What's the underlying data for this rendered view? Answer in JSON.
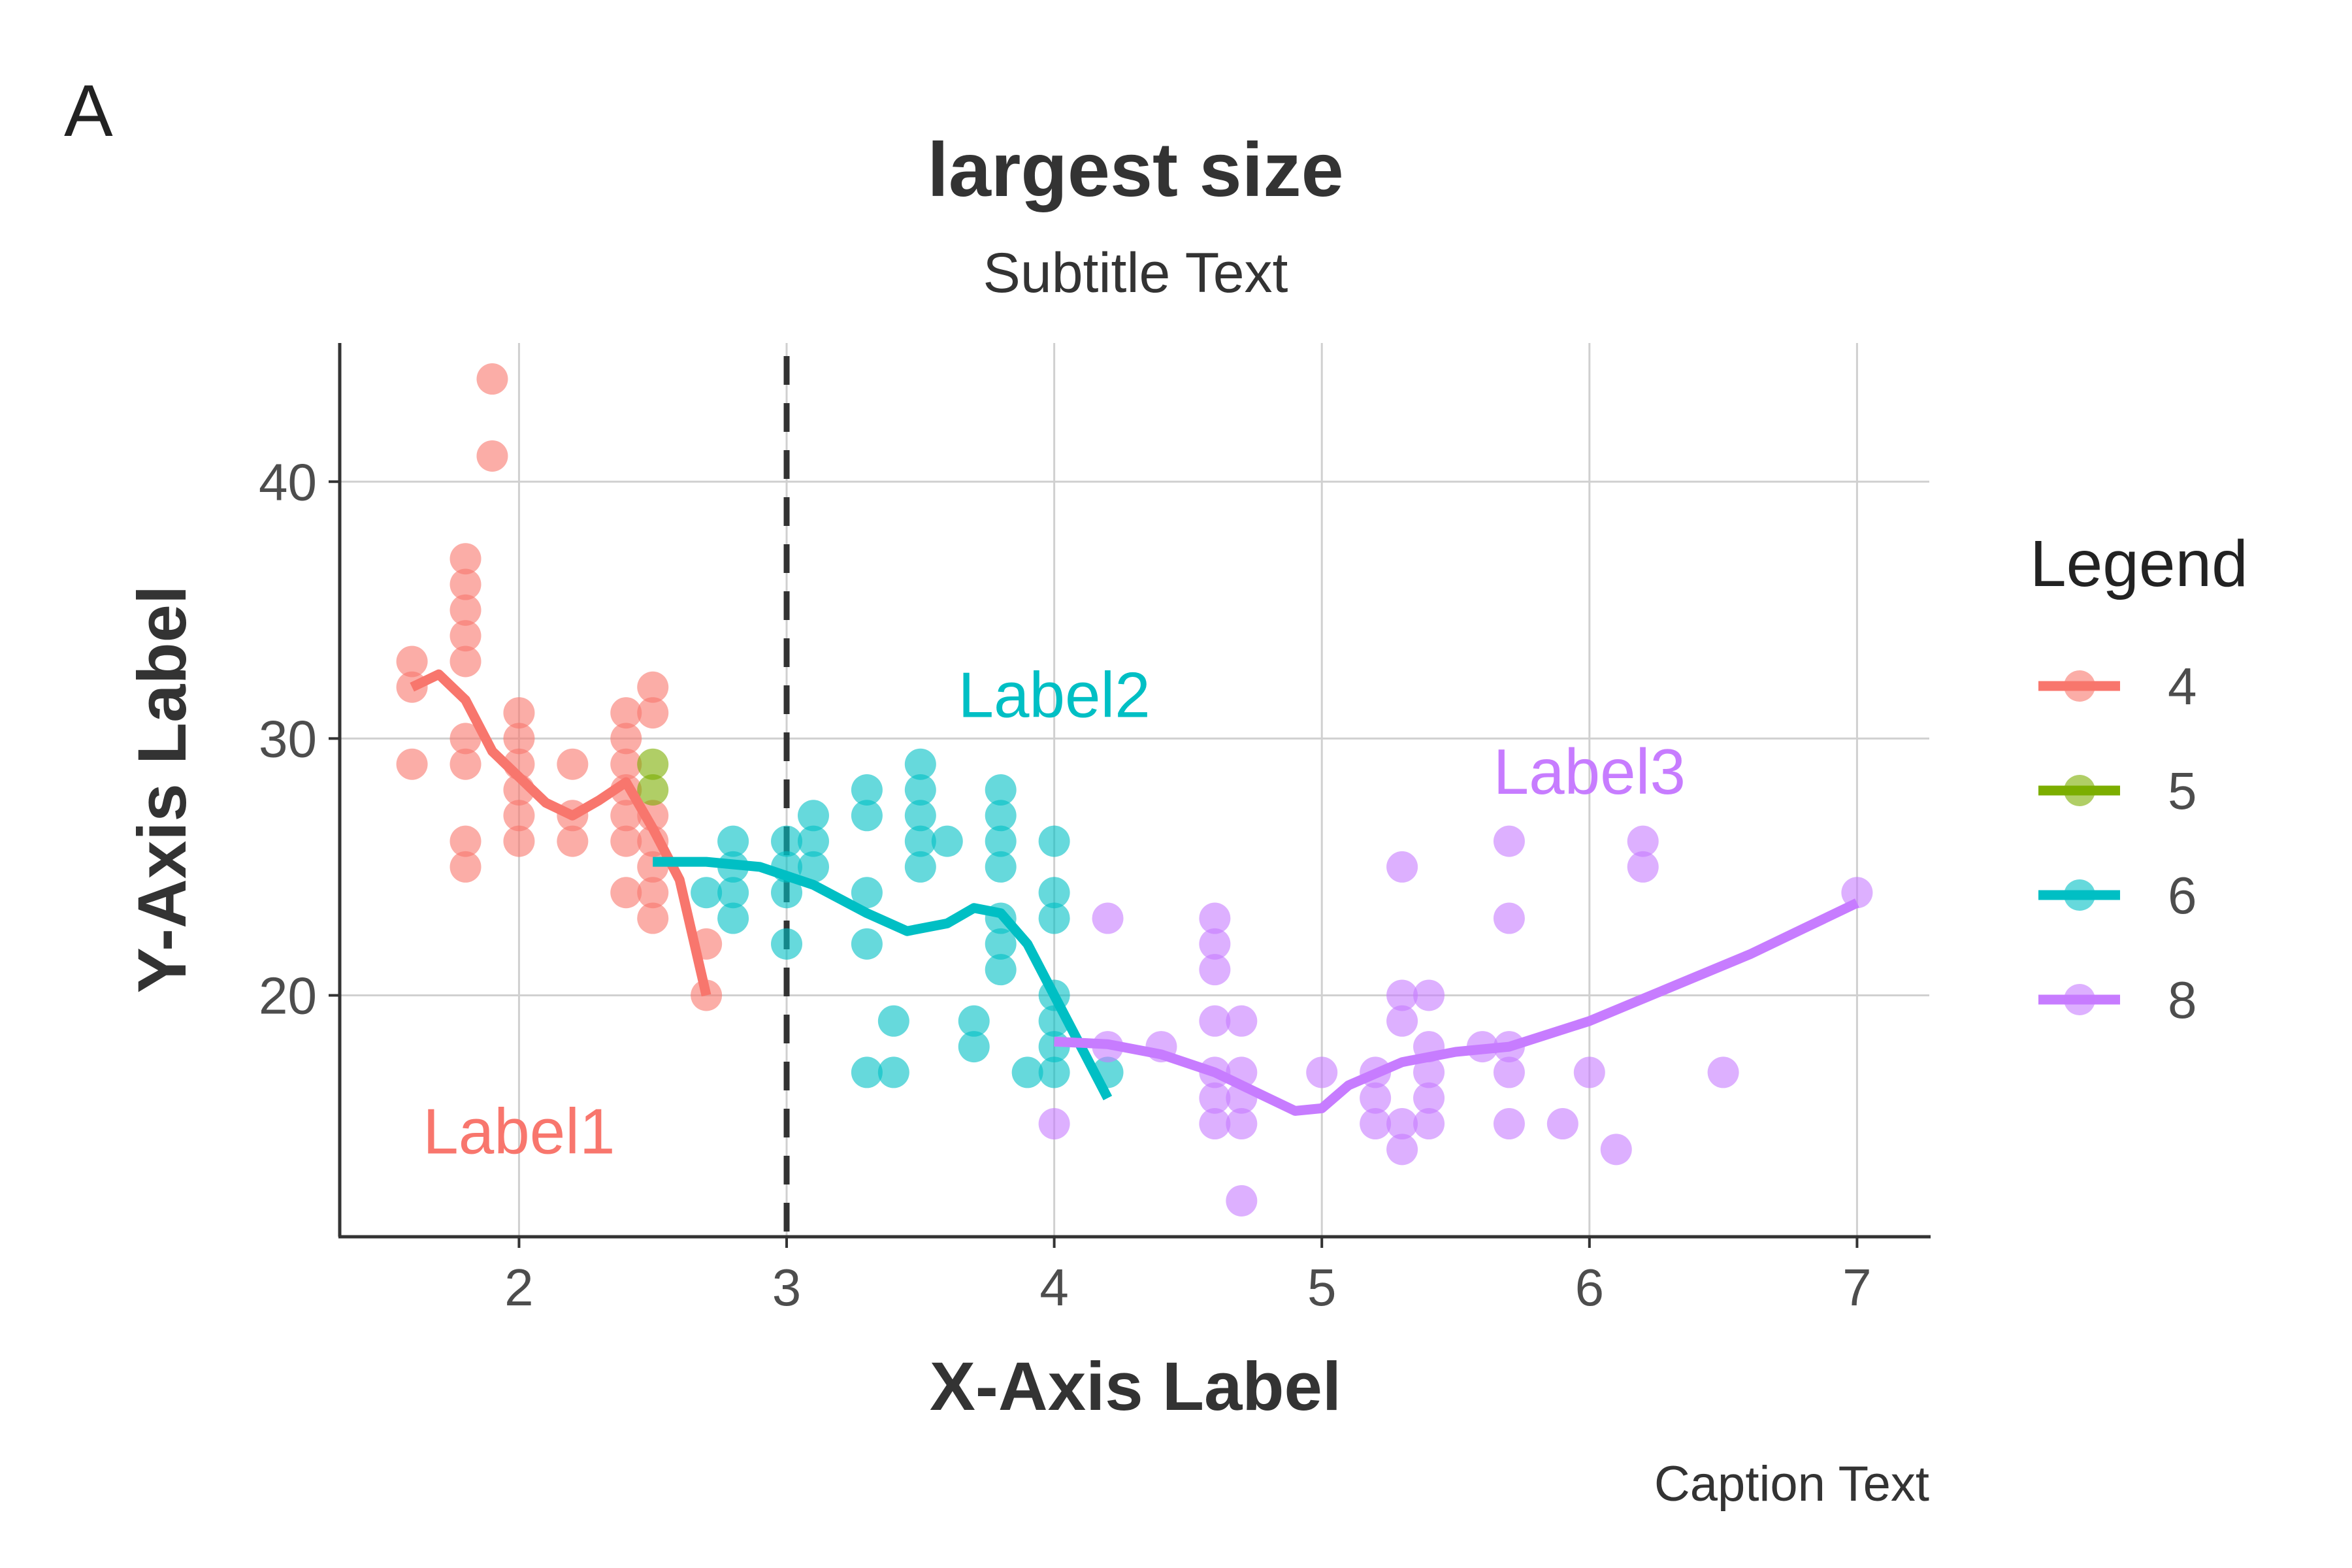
{
  "panel_tag": "A",
  "chart_data": {
    "type": "scatter",
    "title": "largest size",
    "subtitle": "Subtitle Text",
    "xlabel": "X-Axis Label",
    "ylabel": "Y-Axis Label",
    "caption": "Caption Text",
    "xlim": [
      1.33,
      7.27
    ],
    "ylim": [
      10.6,
      45.4
    ],
    "xticks": [
      2,
      3,
      4,
      5,
      6,
      7
    ],
    "xtick_labels": [
      "2",
      "3",
      "4",
      "5",
      "6",
      "7"
    ],
    "yticks": [
      20,
      30,
      40
    ],
    "ytick_labels": [
      "20",
      "30",
      "40"
    ],
    "grid": true,
    "vline": {
      "x": 3,
      "style": "dashed",
      "color": "#333333"
    },
    "legend": {
      "title": "Legend",
      "position": "right"
    },
    "series": [
      {
        "name": "4",
        "color": "#F8766D",
        "points": [
          [
            1.6,
            33
          ],
          [
            1.6,
            32
          ],
          [
            1.6,
            29
          ],
          [
            1.8,
            37
          ],
          [
            1.8,
            36
          ],
          [
            1.8,
            35
          ],
          [
            1.8,
            34
          ],
          [
            1.8,
            33
          ],
          [
            1.8,
            30
          ],
          [
            1.8,
            29
          ],
          [
            1.8,
            26
          ],
          [
            1.8,
            25
          ],
          [
            1.9,
            44
          ],
          [
            1.9,
            41
          ],
          [
            2.0,
            31
          ],
          [
            2.0,
            30
          ],
          [
            2.0,
            29
          ],
          [
            2.0,
            28
          ],
          [
            2.0,
            27
          ],
          [
            2.0,
            26
          ],
          [
            2.2,
            29
          ],
          [
            2.2,
            27
          ],
          [
            2.2,
            26
          ],
          [
            2.4,
            31
          ],
          [
            2.4,
            30
          ],
          [
            2.4,
            29
          ],
          [
            2.4,
            28
          ],
          [
            2.4,
            27
          ],
          [
            2.4,
            26
          ],
          [
            2.4,
            24
          ],
          [
            2.5,
            32
          ],
          [
            2.5,
            31
          ],
          [
            2.5,
            27
          ],
          [
            2.5,
            26
          ],
          [
            2.5,
            25
          ],
          [
            2.5,
            24
          ],
          [
            2.5,
            23
          ],
          [
            2.7,
            22
          ],
          [
            2.7,
            20
          ]
        ],
        "smooth": [
          [
            1.6,
            32
          ],
          [
            1.7,
            32.5
          ],
          [
            1.8,
            31.5
          ],
          [
            1.9,
            29.5
          ],
          [
            2.0,
            28.5
          ],
          [
            2.1,
            27.5
          ],
          [
            2.2,
            27
          ],
          [
            2.3,
            27.6
          ],
          [
            2.4,
            28.3
          ],
          [
            2.5,
            26.5
          ],
          [
            2.6,
            24.5
          ],
          [
            2.7,
            20
          ]
        ]
      },
      {
        "name": "5",
        "color": "#7CAE00",
        "points": [
          [
            2.5,
            29
          ],
          [
            2.5,
            28
          ]
        ],
        "smooth": []
      },
      {
        "name": "6",
        "color": "#00BFC4",
        "points": [
          [
            2.7,
            24
          ],
          [
            2.8,
            26
          ],
          [
            2.8,
            25
          ],
          [
            2.8,
            24
          ],
          [
            2.8,
            23
          ],
          [
            3.0,
            26
          ],
          [
            3.0,
            25
          ],
          [
            3.0,
            24
          ],
          [
            3.0,
            22
          ],
          [
            3.1,
            27
          ],
          [
            3.1,
            26
          ],
          [
            3.1,
            25
          ],
          [
            3.3,
            28
          ],
          [
            3.3,
            27
          ],
          [
            3.3,
            24
          ],
          [
            3.3,
            22
          ],
          [
            3.3,
            17
          ],
          [
            3.4,
            19
          ],
          [
            3.4,
            17
          ],
          [
            3.5,
            29
          ],
          [
            3.5,
            28
          ],
          [
            3.5,
            27
          ],
          [
            3.5,
            26
          ],
          [
            3.5,
            25
          ],
          [
            3.6,
            26
          ],
          [
            3.7,
            19
          ],
          [
            3.7,
            18
          ],
          [
            3.8,
            28
          ],
          [
            3.8,
            27
          ],
          [
            3.8,
            26
          ],
          [
            3.8,
            25
          ],
          [
            3.8,
            23
          ],
          [
            3.8,
            22
          ],
          [
            3.8,
            21
          ],
          [
            3.9,
            17
          ],
          [
            4.0,
            26
          ],
          [
            4.0,
            24
          ],
          [
            4.0,
            23
          ],
          [
            4.0,
            20
          ],
          [
            4.0,
            19
          ],
          [
            4.0,
            18
          ],
          [
            4.0,
            17
          ],
          [
            4.2,
            17
          ]
        ],
        "smooth": [
          [
            2.5,
            25.2
          ],
          [
            2.7,
            25.2
          ],
          [
            2.9,
            25
          ],
          [
            3.1,
            24.3
          ],
          [
            3.3,
            23.2
          ],
          [
            3.45,
            22.5
          ],
          [
            3.6,
            22.8
          ],
          [
            3.7,
            23.4
          ],
          [
            3.8,
            23.2
          ],
          [
            3.9,
            22
          ],
          [
            4.0,
            20
          ],
          [
            4.1,
            18
          ],
          [
            4.2,
            16
          ]
        ]
      },
      {
        "name": "8",
        "color": "#C77CFF",
        "points": [
          [
            4.0,
            15
          ],
          [
            4.2,
            23
          ],
          [
            4.2,
            18
          ],
          [
            4.4,
            18
          ],
          [
            4.6,
            23
          ],
          [
            4.6,
            22
          ],
          [
            4.6,
            21
          ],
          [
            4.6,
            19
          ],
          [
            4.6,
            17
          ],
          [
            4.6,
            16
          ],
          [
            4.6,
            15
          ],
          [
            4.7,
            19
          ],
          [
            4.7,
            17
          ],
          [
            4.7,
            16
          ],
          [
            4.7,
            15
          ],
          [
            4.7,
            12
          ],
          [
            5.0,
            17
          ],
          [
            5.2,
            17
          ],
          [
            5.2,
            16
          ],
          [
            5.2,
            15
          ],
          [
            5.3,
            25
          ],
          [
            5.3,
            20
          ],
          [
            5.3,
            19
          ],
          [
            5.3,
            15
          ],
          [
            5.3,
            14
          ],
          [
            5.4,
            20
          ],
          [
            5.4,
            18
          ],
          [
            5.4,
            17
          ],
          [
            5.4,
            16
          ],
          [
            5.4,
            15
          ],
          [
            5.6,
            18
          ],
          [
            5.7,
            26
          ],
          [
            5.7,
            23
          ],
          [
            5.7,
            18
          ],
          [
            5.7,
            17
          ],
          [
            5.7,
            15
          ],
          [
            5.9,
            15
          ],
          [
            6.0,
            17
          ],
          [
            6.1,
            14
          ],
          [
            6.2,
            26
          ],
          [
            6.2,
            25
          ],
          [
            6.5,
            17
          ],
          [
            7.0,
            24
          ]
        ],
        "smooth": [
          [
            4.0,
            18.2
          ],
          [
            4.2,
            18.1
          ],
          [
            4.4,
            17.7
          ],
          [
            4.6,
            17
          ],
          [
            4.8,
            16
          ],
          [
            4.9,
            15.5
          ],
          [
            5.0,
            15.6
          ],
          [
            5.1,
            16.5
          ],
          [
            5.3,
            17.4
          ],
          [
            5.5,
            17.8
          ],
          [
            5.7,
            18
          ],
          [
            6.0,
            19
          ],
          [
            6.3,
            20.3
          ],
          [
            6.6,
            21.6
          ],
          [
            6.8,
            22.6
          ],
          [
            7.0,
            23.6
          ]
        ]
      }
    ],
    "annotations": [
      {
        "text": "Label1",
        "x": 2.0,
        "y": 14.5,
        "color": "#F8766D"
      },
      {
        "text": "Label2",
        "x": 4.0,
        "y": 31.5,
        "color": "#00BFC4"
      },
      {
        "text": "Label3",
        "x": 6.0,
        "y": 28.5,
        "color": "#C77CFF"
      }
    ]
  }
}
